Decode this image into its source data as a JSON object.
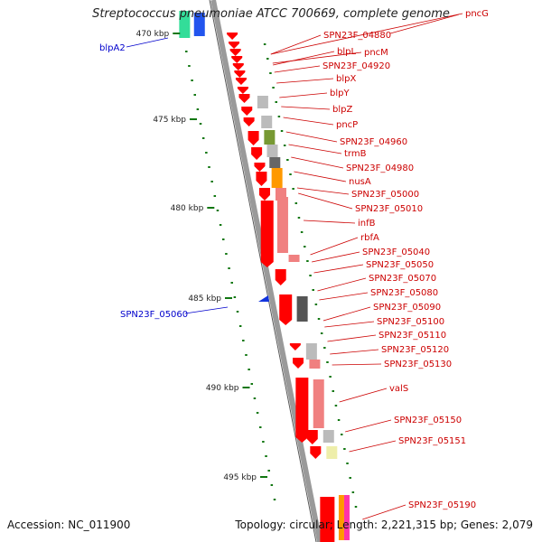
{
  "title": "Streptococcus pneumoniae ATCC 700669, complete genome",
  "footer": {
    "accession": "Accession: NC_011900",
    "stats": "Topology: circular; Length: 2,221,315 bp; Genes: 2,079"
  },
  "colors": {
    "gene_label": "#cc0000",
    "left_label": "#0000cc",
    "backbone": "#888888",
    "tick": "#008000",
    "cds_forward": "#ff0000",
    "cds_reverse_light": "#f08080"
  },
  "ruler": {
    "unit": "kbp",
    "ticks": [
      {
        "label": "470 kbp"
      },
      {
        "label": "475 kbp"
      },
      {
        "label": "480 kbp"
      },
      {
        "label": "485 kbp"
      },
      {
        "label": "490 kbp"
      },
      {
        "label": "495 kbp"
      }
    ]
  },
  "left_labels": [
    {
      "text": "blpA2"
    },
    {
      "text": "SPN23F_05060"
    }
  ],
  "right_labels": [
    {
      "text": "pncG"
    },
    {
      "text": "SPN23F_04880"
    },
    {
      "text": "blpL"
    },
    {
      "text": "pncM"
    },
    {
      "text": "SPN23F_04920"
    },
    {
      "text": "blpX"
    },
    {
      "text": "blpY"
    },
    {
      "text": "blpZ"
    },
    {
      "text": "pncP"
    },
    {
      "text": "SPN23F_04960"
    },
    {
      "text": "trmB"
    },
    {
      "text": "SPN23F_04980"
    },
    {
      "text": "nusA"
    },
    {
      "text": "SPN23F_05000"
    },
    {
      "text": "SPN23F_05010"
    },
    {
      "text": "infB"
    },
    {
      "text": "rbfA"
    },
    {
      "text": "SPN23F_05040"
    },
    {
      "text": "SPN23F_05050"
    },
    {
      "text": "SPN23F_05070"
    },
    {
      "text": "SPN23F_05080"
    },
    {
      "text": "SPN23F_05090"
    },
    {
      "text": "SPN23F_05100"
    },
    {
      "text": "SPN23F_05110"
    },
    {
      "text": "SPN23F_05120"
    },
    {
      "text": "SPN23F_05130"
    },
    {
      "text": "valS"
    },
    {
      "text": "SPN23F_05150"
    },
    {
      "text": "SPN23F_05151"
    },
    {
      "text": "SPN23F_05190"
    }
  ]
}
